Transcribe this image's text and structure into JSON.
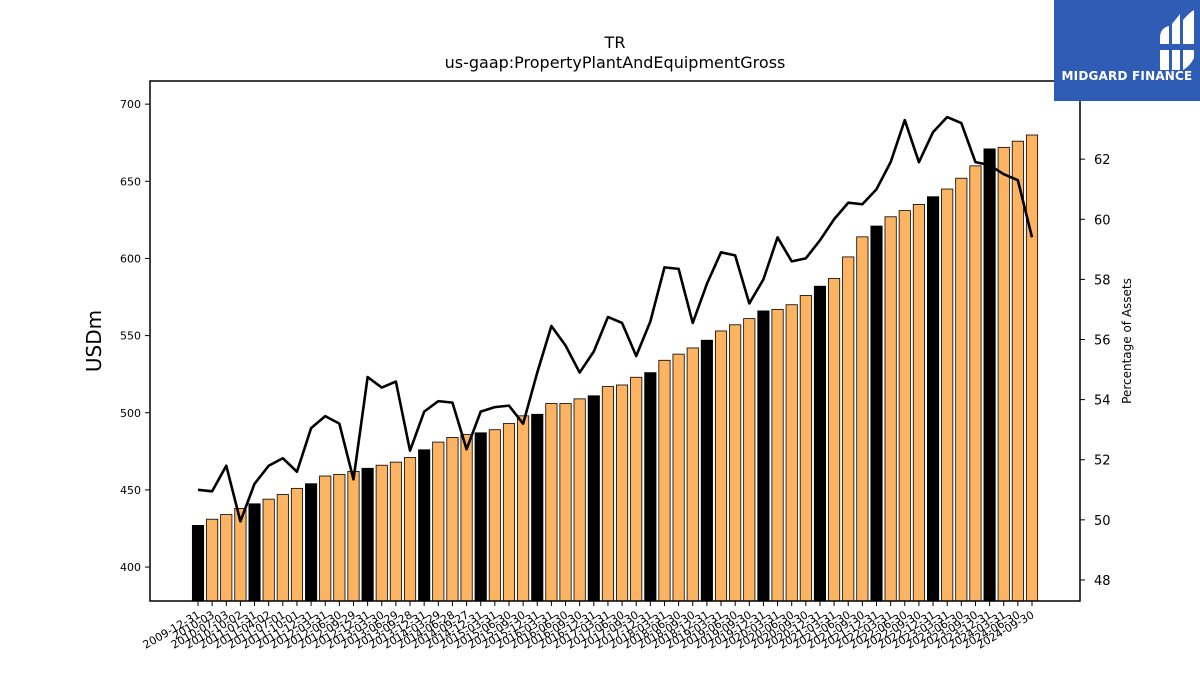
{
  "brand": {
    "name": "MIDGARD FINANCE",
    "color": "#2f5db5"
  },
  "chart_data": {
    "type": "bar",
    "title": "TR",
    "subtitle": "us-gaap:PropertyPlantAndEquipmentGross",
    "ylabel": "USDm",
    "y2label": "Percentage of Assets",
    "ylim": [
      378,
      715
    ],
    "y2lim": [
      47.3,
      64.6
    ],
    "yticks": [
      400,
      450,
      500,
      550,
      600,
      650,
      700
    ],
    "y2ticks": [
      48,
      50,
      52,
      54,
      56,
      58,
      60,
      62
    ],
    "grid": false,
    "colors": {
      "annual": "#000000",
      "quarterly": "#fdb462",
      "line": "#000000"
    },
    "categories": [
      "2009-12-31",
      "2010-03-31",
      "2010-06-30",
      "2010-09-30",
      "2010-12-31",
      "2011-03-31",
      "2011-06-30",
      "2011-09-30",
      "2011-12-31",
      "2012-03-31",
      "2012-06-30",
      "2012-09-30",
      "2012-12-31",
      "2013-03-31",
      "2013-06-30",
      "2013-09-30",
      "2013-12-31",
      "2014-03-31",
      "2014-06-30",
      "2014-09-30",
      "2014-12-31",
      "2015-03-31",
      "2015-06-30",
      "2015-09-30",
      "2015-12-31",
      "2016-03-31",
      "2016-06-30",
      "2016-09-30",
      "2016-12-31",
      "2017-03-31",
      "2017-06-30",
      "2017-09-30",
      "2017-12-31",
      "2018-03-31",
      "2018-06-30",
      "2018-09-30",
      "2018-12-31",
      "2019-03-31",
      "2019-06-30",
      "2019-09-30",
      "2019-12-31",
      "2020-03-31",
      "2020-06-30",
      "2020-09-30",
      "2020-12-31",
      "2021-03-31",
      "2021-06-30",
      "2021-09-30",
      "2021-12-31",
      "2022-03-31",
      "2022-06-30",
      "2022-09-30",
      "2022-12-31",
      "2023-03-31",
      "2023-06-30",
      "2023-09-30",
      "2023-12-31",
      "2024-03-31",
      "2024-06-30",
      "2024-09-30"
    ],
    "tick_labels": [
      "2009-12-31",
      "2010-03",
      "2010-07-03",
      "2010-10-02",
      "2011-01-31",
      "2011-04-02",
      "2011-07-01",
      "2011-10-01",
      "2011-12-31",
      "2012-03-31",
      "2012-06-30",
      "2012-09-29",
      "2012-12-31",
      "2013-03-30",
      "2013-06-29",
      "2013-09-28",
      "2013-12-31",
      "2014-03-29",
      "2014-06-28",
      "2014-09-27",
      "2014-12-31",
      "2015-03-31",
      "2015-06-30",
      "2015-09-30",
      "2015-12-31",
      "2016-03-31",
      "2016-06-30",
      "2016-09-30",
      "2016-12-31",
      "2017-03-31",
      "2017-06-30",
      "2017-09-30",
      "2017-12-31",
      "2018-03-31",
      "2018-06-30",
      "2018-09-30",
      "2018-12-31",
      "2019-03-31",
      "2019-06-30",
      "2019-09-30",
      "2019-12-31",
      "2020-03-31",
      "2020-06-30",
      "2020-09-30",
      "2020-12-31",
      "2021-03-31",
      "2021-06-30",
      "2021-09-30",
      "2021-12-31",
      "2022-03-31",
      "2022-06-30",
      "2022-09-30",
      "2022-12-31",
      "2023-03-31",
      "2023-06-30",
      "2023-09-30",
      "2023-12-31",
      "2024-03-31",
      "2024-06-30",
      "2024-09-30"
    ],
    "annual": [
      true,
      false,
      false,
      false,
      true,
      false,
      false,
      false,
      true,
      false,
      false,
      false,
      true,
      false,
      false,
      false,
      true,
      false,
      false,
      false,
      true,
      false,
      false,
      false,
      true,
      false,
      false,
      false,
      true,
      false,
      false,
      false,
      true,
      false,
      false,
      false,
      true,
      false,
      false,
      false,
      true,
      false,
      false,
      false,
      true,
      false,
      false,
      false,
      true,
      false,
      false,
      false,
      true,
      false,
      false,
      false,
      true,
      false,
      false,
      false
    ],
    "series": [
      {
        "kind": "bar",
        "axis": "left",
        "values": [
          427,
          431,
          434,
          438,
          441,
          444,
          447,
          451,
          454,
          459,
          460,
          462,
          464,
          466,
          468,
          471,
          476,
          481,
          484,
          486,
          487,
          489,
          493,
          498,
          499,
          506,
          506,
          509,
          511,
          517,
          518,
          523,
          526,
          534,
          538,
          542,
          547,
          553,
          557,
          561,
          566,
          567,
          570,
          576,
          582,
          587,
          601,
          614,
          621,
          627,
          631,
          635,
          640,
          645,
          652,
          660,
          671,
          672,
          676,
          680
        ]
      },
      {
        "kind": "line",
        "axis": "right",
        "values": [
          51.0,
          50.95,
          51.8,
          49.95,
          51.2,
          51.8,
          52.05,
          51.6,
          53.05,
          53.45,
          53.2,
          51.35,
          54.75,
          54.4,
          54.6,
          52.3,
          53.6,
          53.95,
          53.9,
          52.35,
          53.6,
          53.75,
          53.8,
          53.2,
          54.9,
          56.45,
          55.8,
          54.9,
          55.6,
          56.75,
          56.55,
          55.45,
          56.6,
          58.4,
          58.35,
          56.55,
          57.85,
          58.9,
          58.8,
          57.2,
          58.0,
          59.4,
          58.6,
          58.7,
          59.3,
          60.0,
          60.55,
          60.5,
          61.0,
          61.9,
          63.3,
          61.9,
          62.9,
          63.4,
          63.2,
          61.9,
          61.8,
          61.5,
          61.3,
          59.4
        ]
      }
    ]
  }
}
